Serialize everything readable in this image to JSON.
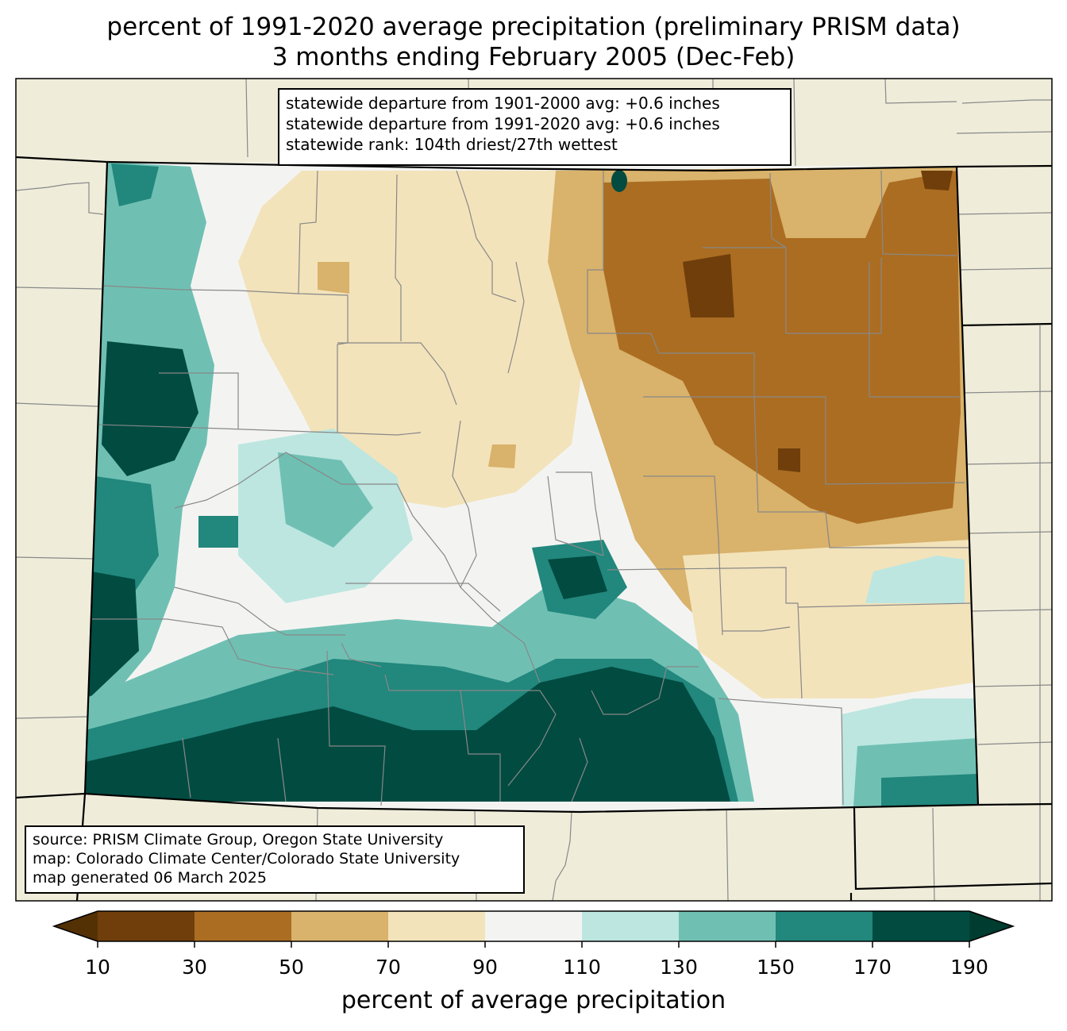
{
  "title": {
    "line1": "percent of 1991-2020 average precipitation (preliminary PRISM data)",
    "line2": "3 months ending February 2005 (Dec-Feb)"
  },
  "stats": {
    "line1": "statewide departure from 1901-2000 avg: +0.6 inches",
    "line2": "statewide departure from 1991-2020 avg: +0.6 inches",
    "line3": "statewide rank: 104th driest/27th wettest"
  },
  "source": {
    "line1": "source: PRISM Climate Group, Oregon State University",
    "line2": "map: Colorado Climate Center/Colorado State University",
    "line3": "map generated 06 March 2025"
  },
  "colorbar": {
    "label": "percent of average precipitation",
    "ticks": [
      "10",
      "30",
      "50",
      "70",
      "90",
      "110",
      "130",
      "150",
      "170",
      "190"
    ],
    "under_color": "#543005",
    "over_color": "#003c30",
    "colors": [
      "#6f3e0b",
      "#ab6d22",
      "#d9b26b",
      "#f3e3bb",
      "#f3f4f2",
      "#bde6e0",
      "#6fc0b3",
      "#22877d",
      "#014b41"
    ]
  },
  "map_colors": {
    "land": "#efedda",
    "state_outline": "#000000",
    "county_lines": "#888888"
  }
}
